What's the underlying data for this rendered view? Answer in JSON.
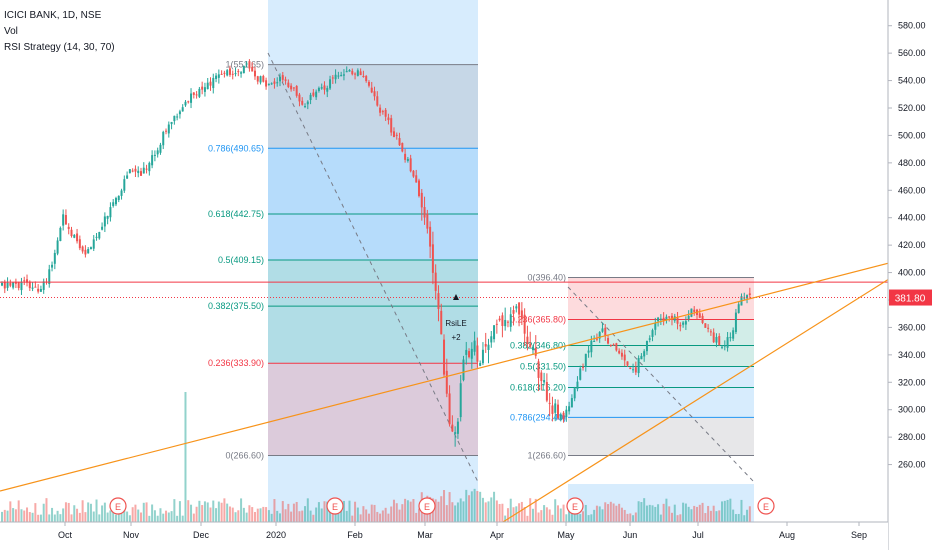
{
  "legend": {
    "symbol": "ICICI BANK, 1D, NSE",
    "volume": "Vol",
    "strategy": "RSI Strategy (14, 30, 70)"
  },
  "colors": {
    "up": "#26a69a",
    "down": "#ef5350",
    "trend_line": "#f7931a",
    "price_line": "#f23645",
    "fib_blue": "#2196f3",
    "fib_green": "#089981",
    "fib_red": "#f23645",
    "fib_grey": "#787b86"
  },
  "chart_data": {
    "type": "candlestick",
    "x_ticks": [
      "Oct",
      "Nov",
      "Dec",
      "2020",
      "Feb",
      "Mar",
      "Apr",
      "May",
      "Jun",
      "Jul",
      "Aug",
      "Sep"
    ],
    "y_ticks": [
      260,
      280,
      300,
      320,
      340,
      360,
      380,
      400,
      420,
      440,
      460,
      480,
      500,
      520,
      540,
      560,
      580
    ],
    "y_range": [
      240,
      590
    ],
    "current_price": 381.8,
    "current_price_label": "381.80",
    "resistance_level": 393,
    "fib_retracements": [
      {
        "high": 551.65,
        "low": 266.6,
        "levels": [
          {
            "ratio": 1,
            "price": 551.65,
            "label": "1(551.65)"
          },
          {
            "ratio": 0.786,
            "price": 490.65,
            "label": "0.786(490.65)"
          },
          {
            "ratio": 0.618,
            "price": 442.75,
            "label": "0.618(442.75)"
          },
          {
            "ratio": 0.5,
            "price": 409.15,
            "label": "0.5(409.15)"
          },
          {
            "ratio": 0.382,
            "price": 375.5,
            "label": "0.382(375.50)"
          },
          {
            "ratio": 0.236,
            "price": 333.9,
            "label": "0.236(333.90)"
          },
          {
            "ratio": 0,
            "price": 266.6,
            "label": "0(266.60)"
          }
        ]
      },
      {
        "high": 396.4,
        "low": 266.6,
        "levels": [
          {
            "ratio": 0,
            "price": 396.4,
            "label": "0(396.40)"
          },
          {
            "ratio": 0.236,
            "price": 365.8,
            "label": "0.236(365.80)"
          },
          {
            "ratio": 0.382,
            "price": 346.8,
            "label": "0.382(346.80)"
          },
          {
            "ratio": 0.5,
            "price": 331.5,
            "label": "0.5(331.50)"
          },
          {
            "ratio": 0.618,
            "price": 316.2,
            "label": "0.618(316.20)"
          },
          {
            "ratio": 0.786,
            "price": 294.4,
            "label": "0.786(294.40)"
          },
          {
            "ratio": 1,
            "price": 266.6,
            "label": "1(266.60)"
          }
        ]
      }
    ],
    "signal_labels": [
      "RsiLE",
      "+2"
    ],
    "earnings_markers": [
      "E",
      "E",
      "E",
      "E",
      "E"
    ],
    "price_path": [
      [
        0,
        390
      ],
      [
        8,
        392
      ],
      [
        14,
        386
      ],
      [
        18,
        405
      ],
      [
        22,
        440
      ],
      [
        26,
        425
      ],
      [
        30,
        412
      ],
      [
        34,
        428
      ],
      [
        38,
        442
      ],
      [
        42,
        455
      ],
      [
        46,
        476
      ],
      [
        50,
        470
      ],
      [
        54,
        484
      ],
      [
        58,
        500
      ],
      [
        62,
        512
      ],
      [
        66,
        525
      ],
      [
        70,
        532
      ],
      [
        74,
        538
      ],
      [
        78,
        542
      ],
      [
        82,
        546
      ],
      [
        86,
        549
      ],
      [
        88,
        550
      ],
      [
        92,
        542
      ],
      [
        96,
        535
      ],
      [
        100,
        540
      ],
      [
        104,
        536
      ],
      [
        108,
        520
      ],
      [
        112,
        530
      ],
      [
        116,
        535
      ],
      [
        120,
        545
      ],
      [
        124,
        548
      ],
      [
        128,
        546
      ],
      [
        132,
        535
      ],
      [
        136,
        518
      ],
      [
        140,
        505
      ],
      [
        144,
        490
      ],
      [
        148,
        470
      ],
      [
        152,
        442
      ],
      [
        154,
        415
      ],
      [
        156,
        390
      ],
      [
        158,
        350
      ],
      [
        161,
        295
      ],
      [
        163,
        280
      ],
      [
        166,
        330
      ],
      [
        169,
        350
      ],
      [
        172,
        338
      ],
      [
        176,
        352
      ],
      [
        180,
        365
      ],
      [
        184,
        372
      ],
      [
        188,
        360
      ],
      [
        190,
        345
      ],
      [
        193,
        330
      ],
      [
        196,
        312
      ],
      [
        199,
        298
      ],
      [
        202,
        292
      ],
      [
        205,
        310
      ],
      [
        208,
        328
      ],
      [
        212,
        348
      ],
      [
        216,
        357
      ],
      [
        220,
        345
      ],
      [
        224,
        335
      ],
      [
        228,
        330
      ],
      [
        232,
        350
      ],
      [
        236,
        365
      ],
      [
        240,
        370
      ],
      [
        244,
        363
      ],
      [
        248,
        372
      ],
      [
        252,
        365
      ],
      [
        256,
        352
      ],
      [
        260,
        345
      ],
      [
        263,
        360
      ],
      [
        266,
        385
      ],
      [
        269,
        382
      ]
    ]
  }
}
